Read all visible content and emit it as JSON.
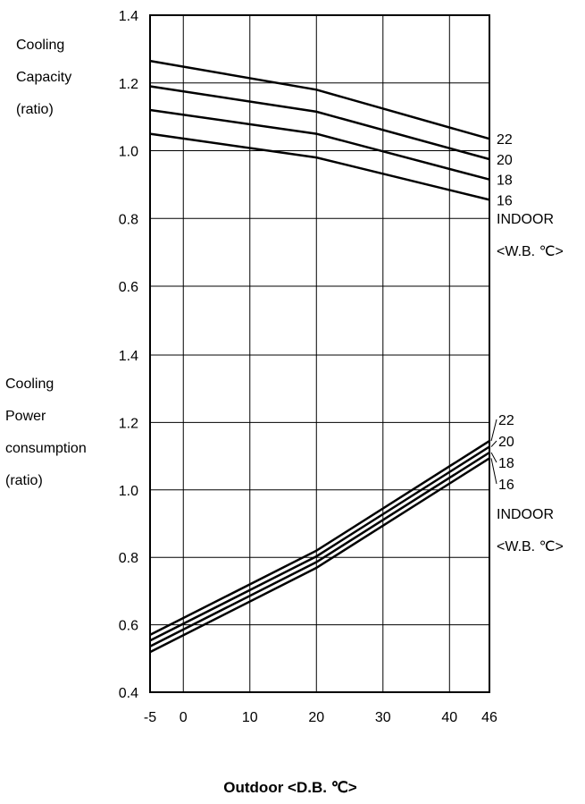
{
  "chart_data": [
    {
      "type": "line",
      "ylabel_lines": [
        "Cooling",
        "Capacity",
        "(ratio)"
      ],
      "x": [
        -5,
        20,
        46
      ],
      "ylim": [
        0.6,
        1.4
      ],
      "yticks": [
        "1.4",
        "1.2",
        "1.0",
        "0.8",
        "0.6"
      ],
      "series": [
        {
          "name": "22",
          "values": [
            1.265,
            1.18,
            1.035
          ]
        },
        {
          "name": "20",
          "values": [
            1.19,
            1.115,
            0.975
          ]
        },
        {
          "name": "18",
          "values": [
            1.12,
            1.05,
            0.915
          ]
        },
        {
          "name": "16",
          "values": [
            1.05,
            0.98,
            0.855
          ]
        }
      ],
      "legend_title": [
        "INDOOR",
        "<W.B. ℃>"
      ]
    },
    {
      "type": "line",
      "ylabel_lines": [
        "Cooling",
        "Power",
        "consumption",
        "(ratio)"
      ],
      "x": [
        -5,
        20,
        46
      ],
      "ylim": [
        0.4,
        1.4
      ],
      "yticks": [
        "1.4",
        "1.2",
        "1.0",
        "0.8",
        "0.6",
        "0.4"
      ],
      "series": [
        {
          "name": "22",
          "values": [
            0.57,
            0.82,
            1.145
          ]
        },
        {
          "name": "20",
          "values": [
            0.553,
            0.803,
            1.128
          ]
        },
        {
          "name": "18",
          "values": [
            0.536,
            0.786,
            1.111
          ]
        },
        {
          "name": "16",
          "values": [
            0.519,
            0.769,
            1.094
          ]
        }
      ],
      "legend_title": [
        "INDOOR",
        "<W.B. ℃>"
      ]
    }
  ],
  "x_axis": {
    "ticks": [
      -5,
      0,
      10,
      20,
      30,
      40,
      46
    ],
    "tick_labels": [
      "-5",
      "0",
      "10",
      "20",
      "30",
      "40",
      "46"
    ],
    "grid_at": [
      0,
      10,
      20,
      30,
      40
    ],
    "title": "Outdoor  <D.B. ℃>"
  },
  "grid": true
}
